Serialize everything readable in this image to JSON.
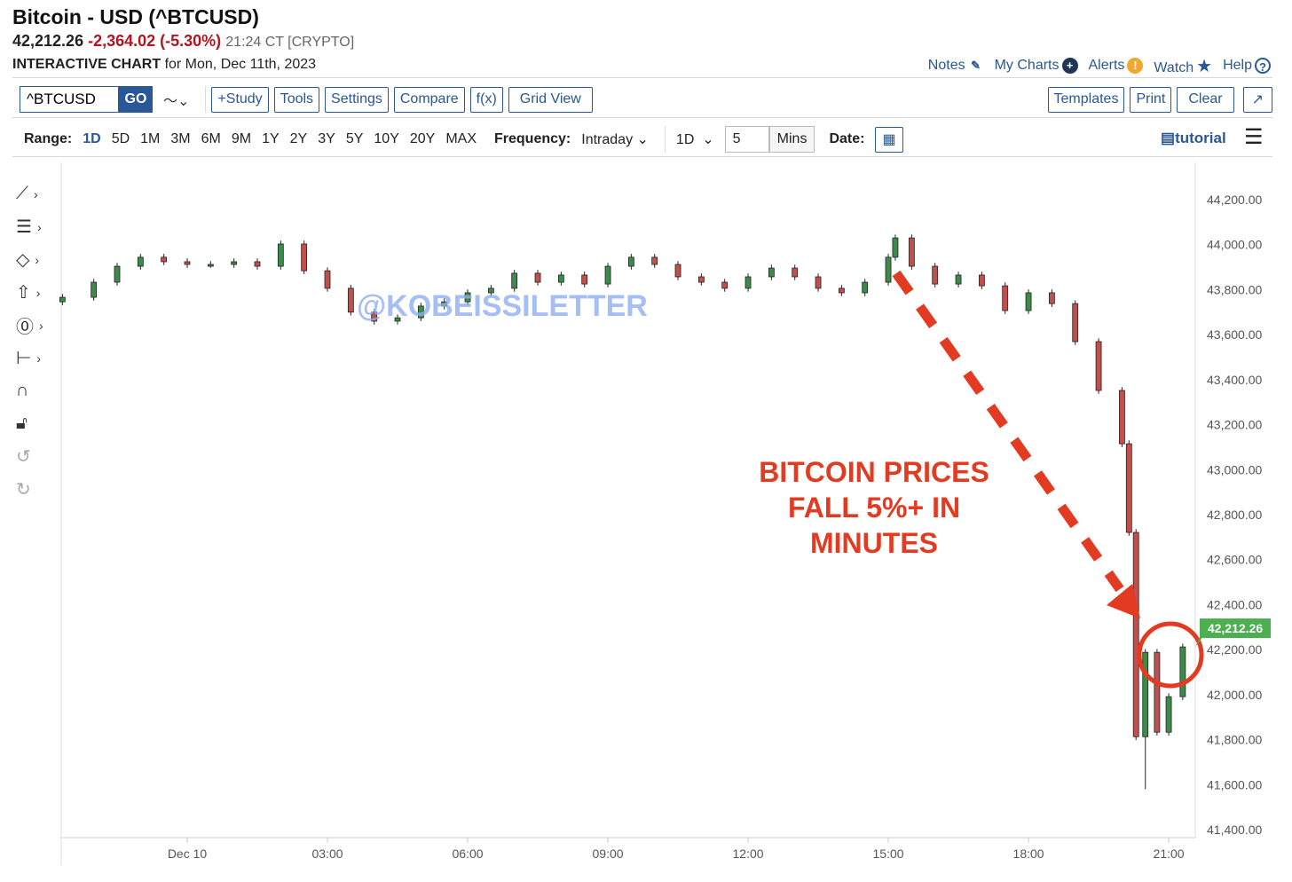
{
  "header": {
    "title": "Bitcoin - USD (^BTCUSD)",
    "last": "42,212.26",
    "change": "-2,364.02 (-5.30%)",
    "time": "21:24 CT [CRYPTO]",
    "chart_label": "INTERACTIVE CHART",
    "chart_date": "for Mon, Dec 11th, 2023"
  },
  "links": [
    {
      "label": "Notes",
      "icon": "edit-icon"
    },
    {
      "label": "My Charts",
      "icon": "plus-circle-icon"
    },
    {
      "label": "Alerts",
      "icon": "alert-icon"
    },
    {
      "label": "Watch",
      "icon": "star-icon"
    },
    {
      "label": "Help",
      "icon": "help-icon"
    }
  ],
  "toolbar": {
    "symbol": "^BTCUSD",
    "go": "GO",
    "buttons": [
      "+Study",
      "Tools",
      "Settings",
      "Compare",
      "f(x)",
      "Grid View"
    ],
    "right_buttons": [
      "Templates",
      "Print",
      "Clear"
    ],
    "expand": "↗"
  },
  "range": {
    "label": "Range:",
    "options": [
      "1D",
      "5D",
      "1M",
      "3M",
      "6M",
      "9M",
      "1Y",
      "2Y",
      "3Y",
      "5Y",
      "10Y",
      "20Y",
      "MAX"
    ],
    "selected": "1D",
    "frequency_label": "Frequency:",
    "frequency": "Intraday",
    "period": "1D",
    "interval": "5",
    "interval_unit": "Mins",
    "date_label": "Date:",
    "tutorial": "tutorial"
  },
  "colors": {
    "up": "#3d8b4a",
    "down": "#c0504d",
    "accent": "#2a5796",
    "annotation": "#e23b22",
    "last_badge": "#4caf50"
  },
  "annotation": {
    "line1": "BITCOIN PRICES",
    "line2": "FALL 5%+ IN",
    "line3": "MINUTES",
    "watermark": "@KOBEISSILETTER"
  },
  "chart_data": {
    "type": "candlestick",
    "ylim": [
      41400,
      44200
    ],
    "yticks": [
      "44,200.00",
      "44,000.00",
      "43,800.00",
      "43,600.00",
      "43,400.00",
      "43,200.00",
      "43,000.00",
      "42,800.00",
      "42,600.00",
      "42,400.00",
      "42,200.00",
      "42,000.00",
      "41,800.00",
      "41,600.00",
      "41,400.00"
    ],
    "xticks": [
      "Dec 10",
      "03:00",
      "06:00",
      "09:00",
      "12:00",
      "15:00",
      "18:00",
      "21:00"
    ],
    "last_price": "42,212.26",
    "x_hours": [
      -2.67,
      -2,
      -1.5,
      -1,
      -0.5,
      0,
      0.5,
      1,
      1.5,
      2,
      2.5,
      3,
      3.5,
      4,
      4.5,
      5,
      5.5,
      6,
      6.5,
      7,
      7.5,
      8,
      8.5,
      9,
      9.5,
      10,
      10.5,
      11,
      11.5,
      12,
      12.5,
      13,
      13.5,
      14,
      14.5,
      15,
      15.15,
      15.5,
      16,
      16.5,
      17,
      17.5,
      18,
      18.5,
      19,
      19.5,
      20,
      20.15,
      20.3,
      20.5,
      20.75,
      21,
      21.3
    ],
    "close": [
      43766,
      43833,
      43904,
      43944,
      43924,
      43912,
      43912,
      43924,
      43904,
      44003,
      43884,
      43806,
      43700,
      43660,
      43675,
      43727,
      43746,
      43786,
      43806,
      43873,
      43833,
      43865,
      43825,
      43904,
      43944,
      43912,
      43857,
      43833,
      43806,
      43857,
      43896,
      43857,
      43806,
      43786,
      43833,
      43944,
      44030,
      43904,
      43825,
      43865,
      43817,
      43707,
      43786,
      43738,
      43569,
      43352,
      43115,
      42721,
      41813,
      42188,
      41833,
      41991,
      42212
    ],
    "low_of_day": 41580
  }
}
